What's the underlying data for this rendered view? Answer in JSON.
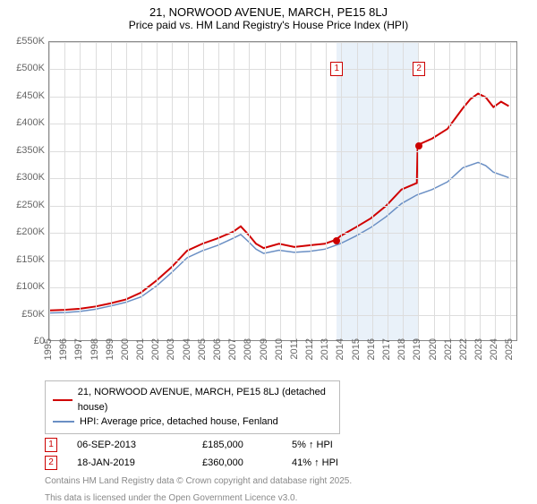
{
  "title": "21, NORWOOD AVENUE, MARCH, PE15 8LJ",
  "subtitle": "Price paid vs. HM Land Registry's House Price Index (HPI)",
  "chart": {
    "type": "line",
    "ylim": [
      0,
      550000
    ],
    "ytick_step_k": 50,
    "yticks": [
      "£0",
      "£50K",
      "£100K",
      "£150K",
      "£200K",
      "£250K",
      "£300K",
      "£350K",
      "£400K",
      "£450K",
      "£500K",
      "£550K"
    ],
    "xlim": [
      1995,
      2025.5
    ],
    "xticks": [
      1995,
      1996,
      1997,
      1998,
      1999,
      2000,
      2001,
      2002,
      2003,
      2004,
      2005,
      2006,
      2007,
      2008,
      2009,
      2010,
      2011,
      2012,
      2013,
      2014,
      2015,
      2016,
      2017,
      2018,
      2019,
      2020,
      2021,
      2022,
      2023,
      2024,
      2025
    ],
    "grid_color": "#dddddd",
    "background_color": "#ffffff",
    "highlight_band": {
      "start": 2013.7,
      "end": 2019.05,
      "color": "#dbe8f5"
    },
    "series": [
      {
        "name": "property",
        "color": "#d00000",
        "width": 2,
        "points": [
          [
            1995,
            55000
          ],
          [
            1996,
            56000
          ],
          [
            1997,
            58000
          ],
          [
            1998,
            62000
          ],
          [
            1999,
            68000
          ],
          [
            2000,
            75000
          ],
          [
            2001,
            88000
          ],
          [
            2002,
            110000
          ],
          [
            2003,
            135000
          ],
          [
            2004,
            165000
          ],
          [
            2005,
            178000
          ],
          [
            2006,
            188000
          ],
          [
            2007,
            200000
          ],
          [
            2007.5,
            210000
          ],
          [
            2008,
            195000
          ],
          [
            2008.5,
            178000
          ],
          [
            2009,
            170000
          ],
          [
            2010,
            178000
          ],
          [
            2011,
            172000
          ],
          [
            2012,
            175000
          ],
          [
            2013,
            178000
          ],
          [
            2013.7,
            185000
          ],
          [
            2014,
            192000
          ],
          [
            2015,
            208000
          ],
          [
            2016,
            225000
          ],
          [
            2017,
            248000
          ],
          [
            2018,
            278000
          ],
          [
            2019,
            290000
          ],
          [
            2019.05,
            360000
          ],
          [
            2020,
            372000
          ],
          [
            2021,
            390000
          ],
          [
            2022,
            428000
          ],
          [
            2022.5,
            445000
          ],
          [
            2023,
            455000
          ],
          [
            2023.5,
            448000
          ],
          [
            2024,
            430000
          ],
          [
            2024.5,
            440000
          ],
          [
            2025,
            432000
          ]
        ]
      },
      {
        "name": "hpi",
        "color": "#6a8fc4",
        "width": 1.5,
        "points": [
          [
            1995,
            50000
          ],
          [
            1996,
            51000
          ],
          [
            1997,
            53000
          ],
          [
            1998,
            57000
          ],
          [
            1999,
            63000
          ],
          [
            2000,
            70000
          ],
          [
            2001,
            80000
          ],
          [
            2002,
            100000
          ],
          [
            2003,
            125000
          ],
          [
            2004,
            152000
          ],
          [
            2005,
            165000
          ],
          [
            2006,
            175000
          ],
          [
            2007,
            188000
          ],
          [
            2007.5,
            195000
          ],
          [
            2008,
            182000
          ],
          [
            2008.5,
            168000
          ],
          [
            2009,
            160000
          ],
          [
            2010,
            166000
          ],
          [
            2011,
            162000
          ],
          [
            2012,
            164000
          ],
          [
            2013,
            168000
          ],
          [
            2014,
            178000
          ],
          [
            2015,
            192000
          ],
          [
            2016,
            208000
          ],
          [
            2017,
            228000
          ],
          [
            2018,
            252000
          ],
          [
            2019,
            268000
          ],
          [
            2020,
            278000
          ],
          [
            2021,
            292000
          ],
          [
            2022,
            318000
          ],
          [
            2023,
            328000
          ],
          [
            2023.5,
            322000
          ],
          [
            2024,
            310000
          ],
          [
            2025,
            300000
          ]
        ]
      }
    ],
    "markers": [
      {
        "n": "1",
        "year": 2013.7,
        "value": 185000
      },
      {
        "n": "2",
        "year": 2019.05,
        "value": 360000
      }
    ]
  },
  "legend": {
    "items": [
      {
        "color": "#d00000",
        "label": "21, NORWOOD AVENUE, MARCH, PE15 8LJ (detached house)"
      },
      {
        "color": "#6a8fc4",
        "label": "HPI: Average price, detached house, Fenland"
      }
    ]
  },
  "sales": [
    {
      "n": "1",
      "date": "06-SEP-2013",
      "price": "£185,000",
      "pct": "5% ↑ HPI"
    },
    {
      "n": "2",
      "date": "18-JAN-2019",
      "price": "£360,000",
      "pct": "41% ↑ HPI"
    }
  ],
  "footer1": "Contains HM Land Registry data © Crown copyright and database right 2025.",
  "footer2": "This data is licensed under the Open Government Licence v3.0."
}
